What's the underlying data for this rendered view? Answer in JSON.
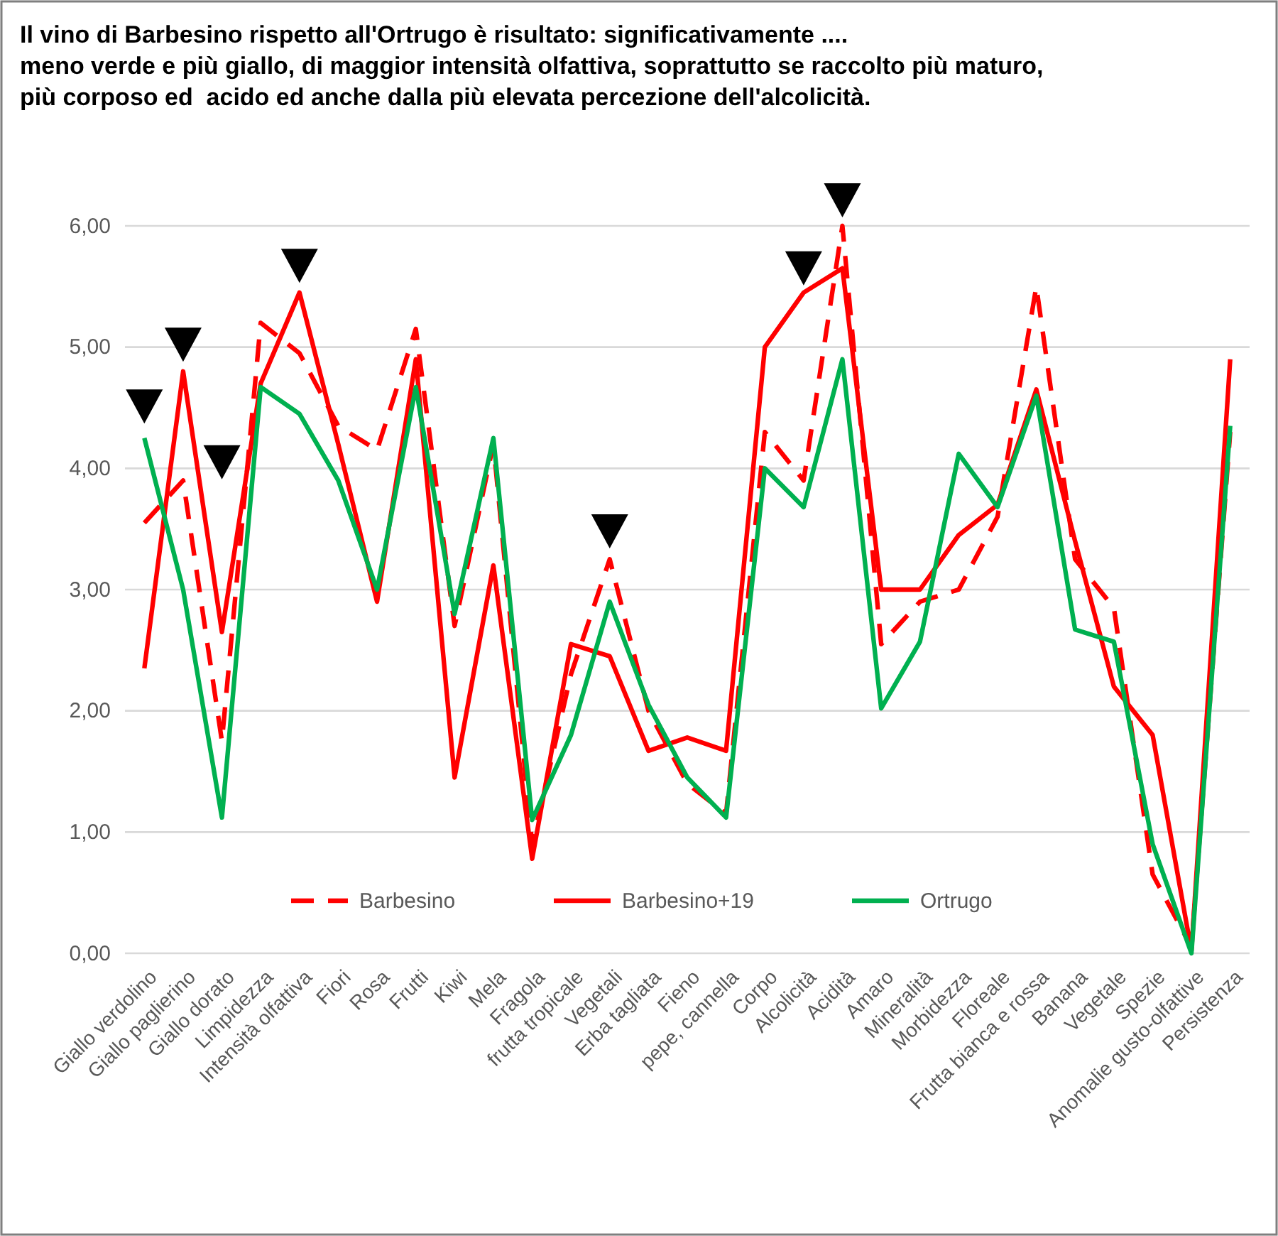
{
  "chart_data": {
    "type": "line",
    "title": "Il vino di Barbesino rispetto all'Ortrugo è risultato: significativamente ....\nmeno verde e più giallo, di maggior intensità olfattiva, soprattutto se raccolto più maturo,\npiù corposo ed  acido ed anche dalla più elevata percezione dell'alcolicità.",
    "categories": [
      "Giallo verdolino",
      "Giallo paglierino",
      "Giallo dorato",
      "Limpidezza",
      "Intensità olfattiva",
      "Fiori",
      "Rosa",
      "Frutti",
      "Kiwi",
      "Mela",
      "Fragola",
      "frutta tropicale",
      "Vegetali",
      "Erba tagliata",
      "Fieno",
      "pepe, cannella",
      "Corpo",
      "Alcolicità",
      "Acidità",
      "Amaro",
      "Mineralità",
      "Morbidezza",
      "Floreale",
      "Frutta bianca e rossa",
      "Banana",
      "Vegetale",
      "Spezie",
      "Anomalie gusto-olfattive",
      "Persistenza"
    ],
    "series": [
      {
        "name": "Barbesino",
        "color": "#ff0000",
        "line_style": "dashed",
        "values": [
          3.55,
          3.9,
          1.75,
          5.2,
          4.95,
          4.35,
          4.15,
          5.15,
          2.7,
          4.2,
          0.9,
          2.3,
          3.25,
          2.0,
          1.4,
          1.15,
          4.3,
          3.9,
          6.0,
          2.55,
          2.9,
          3.0,
          3.6,
          5.5,
          3.25,
          2.85,
          0.65,
          0.05,
          4.3
        ]
      },
      {
        "name": "Barbesino+19",
        "color": "#ff0000",
        "line_style": "solid",
        "values": [
          2.35,
          4.8,
          2.65,
          4.7,
          5.45,
          4.2,
          2.9,
          4.9,
          1.45,
          3.2,
          0.78,
          2.55,
          2.45,
          1.67,
          1.78,
          1.67,
          5.0,
          5.45,
          5.65,
          3.0,
          3.0,
          3.45,
          3.7,
          4.65,
          3.4,
          2.2,
          1.8,
          0.02,
          4.9
        ]
      },
      {
        "name": "Ortrugo",
        "color": "#00b050",
        "line_style": "solid",
        "values": [
          4.25,
          3.0,
          1.12,
          4.67,
          4.45,
          3.9,
          3.0,
          4.67,
          2.8,
          4.25,
          1.1,
          1.8,
          2.9,
          2.05,
          1.45,
          1.12,
          4.0,
          3.68,
          4.9,
          2.02,
          2.57,
          4.12,
          3.68,
          4.6,
          2.67,
          2.57,
          0.9,
          0.0,
          4.35
        ]
      }
    ],
    "ylim": [
      0,
      6
    ],
    "yticks": [
      {
        "value": 0,
        "label": "0,00"
      },
      {
        "value": 1,
        "label": "1,00"
      },
      {
        "value": 2,
        "label": "2,00"
      },
      {
        "value": 3,
        "label": "3,00"
      },
      {
        "value": 4,
        "label": "4,00"
      },
      {
        "value": 5,
        "label": "5,00"
      },
      {
        "value": 6,
        "label": "6,00"
      }
    ],
    "grid": "y",
    "legend": "bottom",
    "marker": "none"
  }
}
